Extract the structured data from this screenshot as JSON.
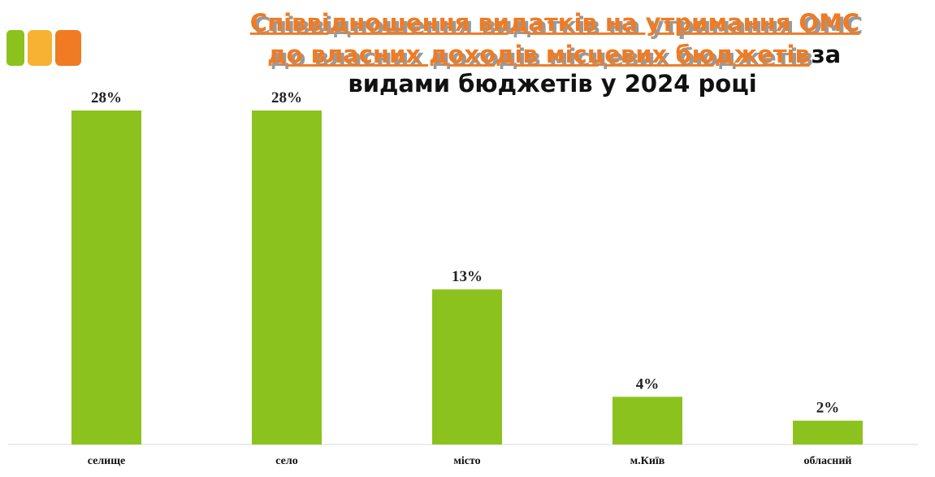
{
  "chart_data": {
    "type": "bar",
    "title": [
      "Співвідношення видатків на утримання ОМС",
      "до власних доходів місцевих бюджетів"
    ],
    "subtitle": [
      "за",
      "видами бюджетів у 2024 році"
    ],
    "categories": [
      "селище",
      "село",
      "місто",
      "м.Київ",
      "обласний"
    ],
    "values": [
      28,
      28,
      13,
      4,
      2
    ],
    "value_labels": [
      "28%",
      "28%",
      "13%",
      "4%",
      "2%"
    ],
    "color": "#8cc21e"
  }
}
